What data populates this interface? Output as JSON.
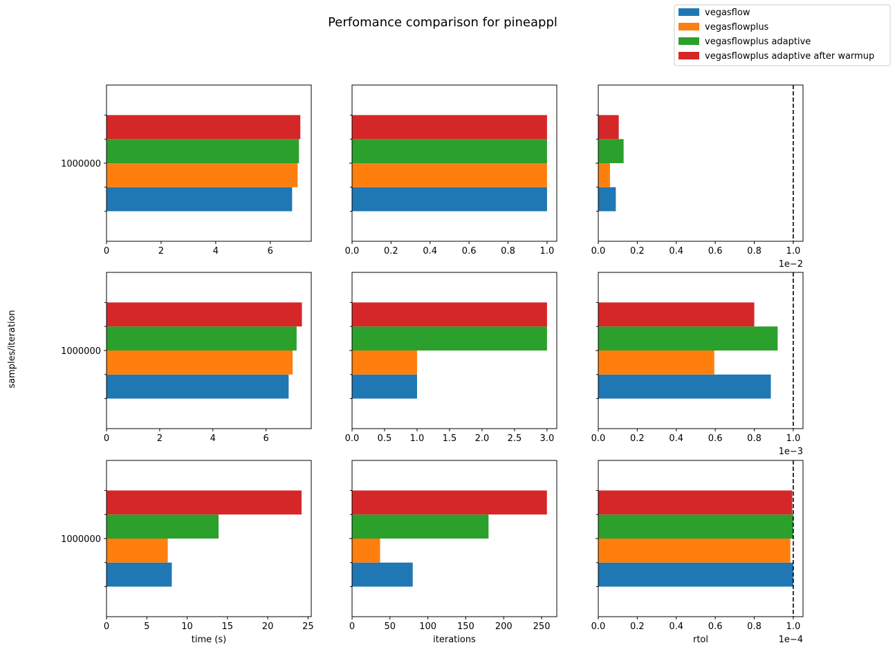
{
  "figure": {
    "title": "Perfomance comparison for pineappl",
    "ylabel": "samples/iteration"
  },
  "legend": {
    "placement": "upper-right",
    "entries": [
      {
        "label": "vegasflow",
        "color": "#1f77b4"
      },
      {
        "label": "vegasflowplus",
        "color": "#ff7f0e"
      },
      {
        "label": "vegasflowplus adaptive",
        "color": "#2ca02c"
      },
      {
        "label": "vegasflowplus adaptive after warmup",
        "color": "#d62728"
      }
    ]
  },
  "chart_data": [
    {
      "type": "bar",
      "orientation": "horizontal",
      "row": 1,
      "col": 1,
      "category": "1000000",
      "values": [
        6.8,
        7.0,
        7.05,
        7.1
      ],
      "xlim": [
        0,
        7.5
      ],
      "xticks": [
        "0",
        "2",
        "4",
        "6"
      ],
      "tick_values": [
        0,
        2,
        4,
        6
      ],
      "xlabel": "",
      "multiplier": "",
      "threshold": null
    },
    {
      "type": "bar",
      "orientation": "horizontal",
      "row": 1,
      "col": 2,
      "category": "1000000",
      "values": [
        1,
        1,
        1,
        1
      ],
      "xlim": [
        0,
        1.05
      ],
      "xticks": [
        "0.0",
        "0.2",
        "0.4",
        "0.6",
        "0.8",
        "1.0"
      ],
      "tick_values": [
        0,
        0.2,
        0.4,
        0.6,
        0.8,
        1.0
      ],
      "xlabel": "",
      "multiplier": "",
      "threshold": null
    },
    {
      "type": "bar",
      "orientation": "horizontal",
      "row": 1,
      "col": 3,
      "category": "1000000",
      "values": [
        0.09,
        0.06,
        0.13,
        0.105
      ],
      "xlim": [
        0,
        1.05
      ],
      "xticks": [
        "0.0",
        "0.2",
        "0.4",
        "0.6",
        "0.8",
        "1.0"
      ],
      "tick_values": [
        0,
        0.2,
        0.4,
        0.6,
        0.8,
        1.0
      ],
      "xlabel": "",
      "multiplier": "1e−2",
      "threshold": 1.0
    },
    {
      "type": "bar",
      "orientation": "horizontal",
      "row": 2,
      "col": 1,
      "category": "1000000",
      "values": [
        6.85,
        7.0,
        7.15,
        7.35
      ],
      "xlim": [
        0,
        7.7
      ],
      "xticks": [
        "0",
        "2",
        "4",
        "6"
      ],
      "tick_values": [
        0,
        2,
        4,
        6
      ],
      "xlabel": "",
      "multiplier": "",
      "threshold": null
    },
    {
      "type": "bar",
      "orientation": "horizontal",
      "row": 2,
      "col": 2,
      "category": "1000000",
      "values": [
        1,
        1,
        3,
        3
      ],
      "xlim": [
        0,
        3.15
      ],
      "xticks": [
        "0.0",
        "0.5",
        "1.0",
        "1.5",
        "2.0",
        "2.5",
        "3.0"
      ],
      "tick_values": [
        0,
        0.5,
        1.0,
        1.5,
        2.0,
        2.5,
        3.0
      ],
      "xlabel": "",
      "multiplier": "",
      "threshold": null
    },
    {
      "type": "bar",
      "orientation": "horizontal",
      "row": 2,
      "col": 3,
      "category": "1000000",
      "values": [
        0.885,
        0.595,
        0.92,
        0.8
      ],
      "xlim": [
        0,
        1.05
      ],
      "xticks": [
        "0.0",
        "0.2",
        "0.4",
        "0.6",
        "0.8",
        "1.0"
      ],
      "tick_values": [
        0,
        0.2,
        0.4,
        0.6,
        0.8,
        1.0
      ],
      "xlabel": "",
      "multiplier": "1e−3",
      "threshold": 1.0
    },
    {
      "type": "bar",
      "orientation": "horizontal",
      "row": 3,
      "col": 1,
      "category": "1000000",
      "values": [
        8.1,
        7.6,
        13.9,
        24.2
      ],
      "xlim": [
        0,
        25.4
      ],
      "xticks": [
        "0",
        "5",
        "10",
        "15",
        "20",
        "25"
      ],
      "tick_values": [
        0,
        5,
        10,
        15,
        20,
        25
      ],
      "xlabel": "time (s)",
      "multiplier": "",
      "threshold": null
    },
    {
      "type": "bar",
      "orientation": "horizontal",
      "row": 3,
      "col": 2,
      "category": "1000000",
      "values": [
        80,
        37,
        180,
        257
      ],
      "xlim": [
        0,
        270
      ],
      "xticks": [
        "0",
        "50",
        "100",
        "150",
        "200",
        "250"
      ],
      "tick_values": [
        0,
        50,
        100,
        150,
        200,
        250
      ],
      "xlabel": "iterations",
      "multiplier": "",
      "threshold": null
    },
    {
      "type": "bar",
      "orientation": "horizontal",
      "row": 3,
      "col": 3,
      "category": "1000000",
      "values": [
        1.0,
        0.985,
        1.0,
        0.995
      ],
      "xlim": [
        0,
        1.05
      ],
      "xticks": [
        "0.0",
        "0.2",
        "0.4",
        "0.6",
        "0.8",
        "1.0"
      ],
      "tick_values": [
        0,
        0.2,
        0.4,
        0.6,
        0.8,
        1.0
      ],
      "xlabel": "rtol",
      "multiplier": "1e−4",
      "threshold": 1.0
    }
  ]
}
